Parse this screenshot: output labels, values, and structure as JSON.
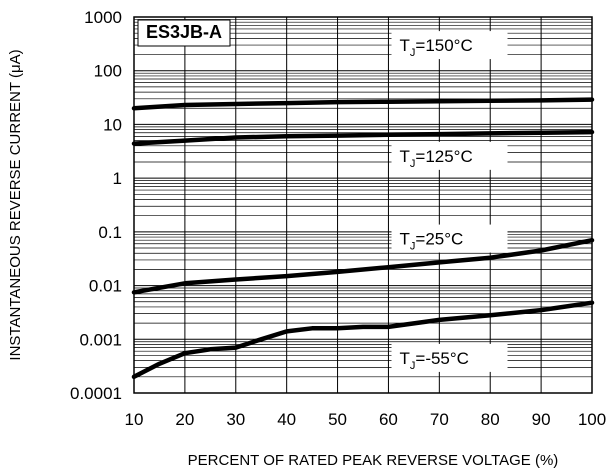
{
  "chart_data": {
    "type": "line",
    "title": "ES3JB-A",
    "xlabel": "PERCENT OF RATED PEAK REVERSE VOLTAGE (%)",
    "ylabel": "INSTANTANEOUS REVERSE CURRENT (μA)",
    "xlim": [
      10,
      100
    ],
    "ylim": [
      0.0001,
      1000
    ],
    "yscale": "log",
    "grid": true,
    "x_ticks": [
      "10",
      "20",
      "30",
      "40",
      "50",
      "60",
      "70",
      "80",
      "90",
      "100"
    ],
    "y_ticks": [
      "1000",
      "100",
      "10",
      "1",
      "0.1",
      "0.01",
      "0.001",
      "0.0001"
    ],
    "series": [
      {
        "label_main": "T",
        "label_sub": "J",
        "label_rest": "=150°C",
        "x": [
          10,
          20,
          30,
          40,
          50,
          60,
          70,
          80,
          90,
          100
        ],
        "y": [
          20,
          23,
          24,
          25,
          26,
          26.5,
          27,
          27.5,
          28,
          29
        ]
      },
      {
        "label_main": "T",
        "label_sub": "J",
        "label_rest": "=125°C",
        "x": [
          10,
          20,
          30,
          40,
          50,
          60,
          70,
          80,
          90,
          100
        ],
        "y": [
          4.4,
          5.0,
          5.7,
          6.0,
          6.2,
          6.4,
          6.6,
          6.8,
          7.0,
          7.2
        ]
      },
      {
        "label_main": "T",
        "label_sub": "J",
        "label_rest": "=25°C",
        "x": [
          10,
          20,
          30,
          40,
          50,
          60,
          70,
          80,
          90,
          100
        ],
        "y": [
          0.0075,
          0.011,
          0.013,
          0.015,
          0.018,
          0.022,
          0.027,
          0.033,
          0.045,
          0.07
        ]
      },
      {
        "label_main": "T",
        "label_sub": "J",
        "label_rest": "=-55°C",
        "x": [
          10,
          15,
          20,
          25,
          30,
          35,
          40,
          45,
          50,
          55,
          60,
          70,
          80,
          90,
          100
        ],
        "y": [
          0.0002,
          0.00035,
          0.00055,
          0.00065,
          0.0007,
          0.001,
          0.0014,
          0.0016,
          0.0016,
          0.0017,
          0.0017,
          0.0023,
          0.0028,
          0.0035,
          0.0048
        ]
      }
    ]
  }
}
